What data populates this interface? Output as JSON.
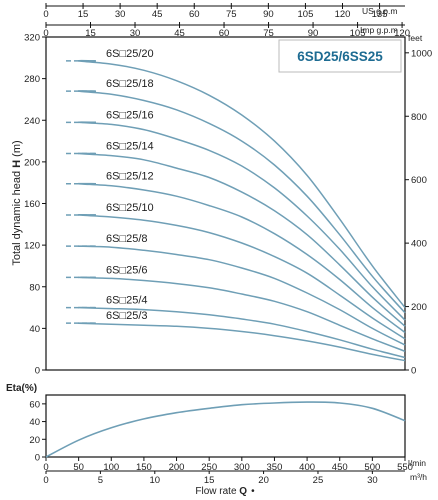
{
  "colors": {
    "curve": "#6f9fb6",
    "axis": "#111111",
    "title": "#1d6b92"
  },
  "chart_data": [
    {
      "type": "line",
      "title": "6SD25/6SS25",
      "ylabel": "Total dynamic head H (m)",
      "ylabel_prefix": "Total dynamic head ",
      "ylabel_symbol": "H",
      "ylabel_unit": " (m)",
      "xlim": [
        0,
        550
      ],
      "ylim": [
        0,
        320
      ],
      "y_ticks": [
        0,
        40,
        80,
        120,
        160,
        200,
        240,
        280,
        320
      ],
      "right_axis": {
        "label": "feet",
        "ticks": [
          0,
          200,
          400,
          600,
          800,
          1000
        ],
        "factor_ft_per_m": 3.28084
      },
      "top_axes": [
        {
          "unit": "US g.p.m",
          "ticks": [
            0,
            15,
            30,
            45,
            60,
            75,
            90,
            105,
            120,
            135
          ],
          "factor_lpm_per_unit": 3.7854
        },
        {
          "unit": "Imp g.p.m",
          "ticks": [
            0,
            15,
            30,
            45,
            60,
            75,
            90,
            105,
            120
          ],
          "factor_lpm_per_unit": 4.546
        }
      ],
      "x": [
        0,
        50,
        100,
        150,
        200,
        250,
        300,
        350,
        400,
        450,
        500,
        550
      ],
      "series": [
        {
          "label": "6S□25/20",
          "values": [
            297,
            297,
            294,
            288,
            278,
            264,
            245,
            220,
            187,
            145,
            100,
            60
          ]
        },
        {
          "label": "6S□25/18",
          "values": [
            268,
            268,
            265,
            259,
            250,
            237,
            220,
            197,
            167,
            130,
            90,
            55
          ]
        },
        {
          "label": "6S□25/16",
          "values": [
            238,
            238,
            236,
            231,
            222,
            211,
            196,
            175,
            148,
            116,
            80,
            48
          ]
        },
        {
          "label": "6S□25/14",
          "values": [
            208,
            208,
            206,
            202,
            194,
            185,
            171,
            153,
            130,
            101,
            70,
            42
          ]
        },
        {
          "label": "6S□25/12",
          "values": [
            179,
            179,
            177,
            173,
            167,
            158,
            147,
            131,
            111,
            87,
            60,
            36
          ]
        },
        {
          "label": "6S□25/10",
          "values": [
            149,
            149,
            147,
            144,
            139,
            132,
            122,
            109,
            93,
            72,
            50,
            30
          ]
        },
        {
          "label": "6S□25/8",
          "values": [
            119,
            119,
            118,
            115,
            111,
            106,
            98,
            88,
            74,
            58,
            40,
            24
          ]
        },
        {
          "label": "6S□25/6",
          "values": [
            89,
            89,
            88,
            86,
            83,
            79,
            73,
            66,
            56,
            43,
            30,
            18
          ]
        },
        {
          "label": "6S□25/4",
          "values": [
            60,
            60,
            59,
            58,
            56,
            53,
            49,
            44,
            37,
            29,
            20,
            12
          ]
        },
        {
          "label": "6S□25/3",
          "values": [
            45,
            45,
            44,
            43,
            42,
            40,
            37,
            33,
            28,
            22,
            15,
            9
          ]
        }
      ]
    },
    {
      "type": "line",
      "ylabel": "Eta(%)",
      "ylim": [
        0,
        70
      ],
      "y_ticks": [
        0,
        20,
        40,
        60
      ],
      "xlim": [
        0,
        550
      ],
      "x_ticks": [
        0,
        50,
        100,
        150,
        200,
        250,
        300,
        350,
        400,
        450,
        500,
        550
      ],
      "x_unit": "l/min",
      "x2_ticks": [
        0,
        5,
        10,
        15,
        20,
        25,
        30
      ],
      "x2_unit": "m³/h",
      "xlabel": "Flow rate Q",
      "xlabel_prefix": "Flow rate ",
      "xlabel_symbol": "Q",
      "xlabel_marker": "•",
      "x": [
        0,
        50,
        100,
        150,
        200,
        250,
        300,
        350,
        400,
        450,
        500,
        550
      ],
      "values": [
        0,
        19,
        33,
        43,
        50,
        55,
        59,
        61,
        62,
        61,
        55,
        41
      ]
    }
  ]
}
